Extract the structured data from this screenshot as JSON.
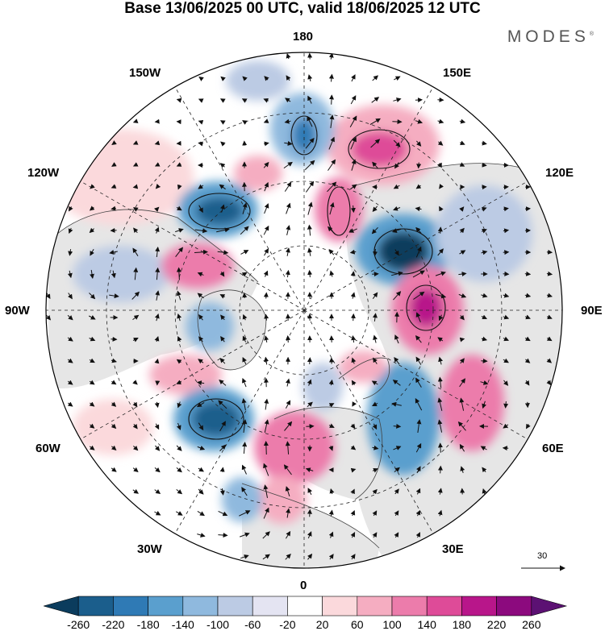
{
  "title": "Base 13/06/2025 00 UTC, valid 18/06/2025 12 UTC",
  "brand": "MODES",
  "brand_mark": "®",
  "longitude_labels": {
    "top": "180",
    "bottom": "0",
    "left": "90W",
    "right": "90E",
    "upper_left_1": "150W",
    "upper_left_2": "120W",
    "upper_right_1": "150E",
    "upper_right_2": "120E",
    "lower_left_1": "60W",
    "lower_left_2": "30W",
    "lower_right_1": "60E",
    "lower_right_2": "30E"
  },
  "reference_vector_label": "30",
  "colorbar": {
    "tick_labels": [
      "-260",
      "-220",
      "-180",
      "-140",
      "-100",
      "-60",
      "-20",
      "20",
      "60",
      "100",
      "140",
      "180",
      "220",
      "260"
    ],
    "colors": [
      "#0b3c5d",
      "#1b5e8c",
      "#2f7ab5",
      "#5a9fce",
      "#8fb9de",
      "#bccbe4",
      "#e4e4f2",
      "#ffffff",
      "#fbd9dc",
      "#f5adc1",
      "#ec7cab",
      "#de4b98",
      "#b8168a",
      "#8c0a7e",
      "#5c1173"
    ]
  },
  "colors": {
    "land": "#e6e6e6",
    "ocean": "#ffffff",
    "coast": "#444444",
    "grid": "#222222"
  }
}
